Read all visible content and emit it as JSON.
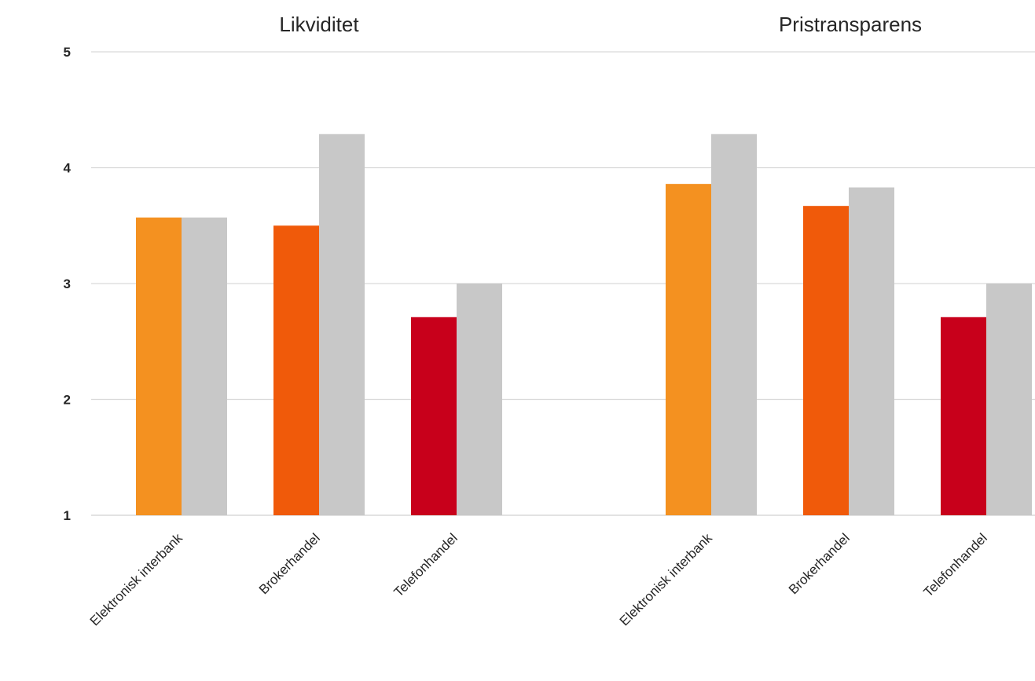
{
  "chart_data": {
    "type": "bar",
    "ylim": [
      1,
      5
    ],
    "yticks": [
      1,
      2,
      3,
      4,
      5
    ],
    "grid": true,
    "panels": [
      {
        "title": "Likviditet",
        "categories": [
          "Elektronisk interbank",
          "Brokerhandel",
          "Telefonhandel"
        ],
        "values": [
          3.57,
          3.5,
          2.71
        ],
        "comparison_values": [
          3.57,
          4.29,
          3.0
        ]
      },
      {
        "title": "Pristransparens",
        "categories": [
          "Elektronisk interbank",
          "Brokerhandel",
          "Telefonhandel"
        ],
        "values": [
          3.86,
          3.67,
          2.71
        ],
        "comparison_values": [
          4.29,
          3.83,
          3.0
        ]
      }
    ],
    "category_colors": [
      "#f49120",
      "#f05a0a",
      "#c8001b"
    ],
    "comparison_color": "#c8c8c8"
  }
}
